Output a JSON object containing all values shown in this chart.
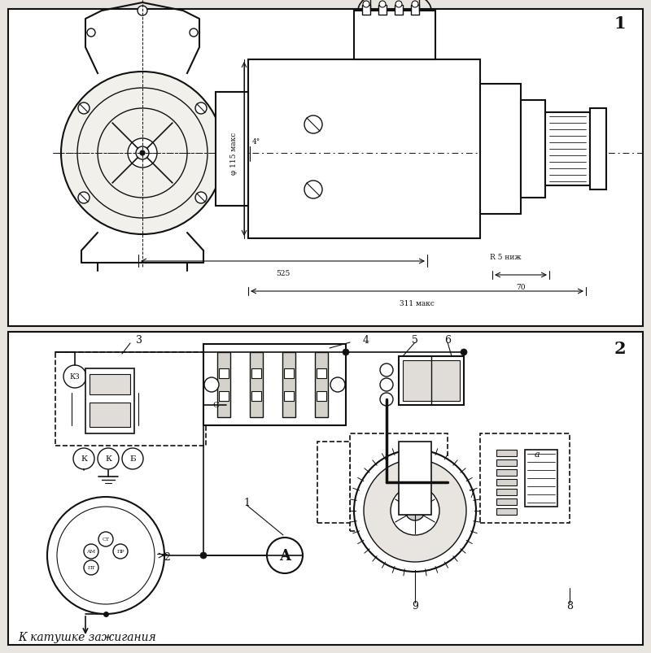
{
  "bg_color": "#e8e5e0",
  "panel_bg": "#f2f0eb",
  "line_color": "#111111",
  "fig_width": 8.0,
  "fig_height": 8.04,
  "label1": "1",
  "label2": "2",
  "text_bottom": "К катушке зажигания",
  "dim_phi": "φ 115 макс",
  "dim_r5": "R 5 ниж",
  "dim_70": "70",
  "dim_311": "311 макс",
  "dim_525": "525",
  "dim_4deg": "4°",
  "amm_label": "A",
  "relay_labels": [
    "КЗ",
    "С",
    "К",
    "К",
    "Б"
  ],
  "dist_labels": [
    "СТ",
    "АМ",
    "ПР",
    "ПТ"
  ]
}
